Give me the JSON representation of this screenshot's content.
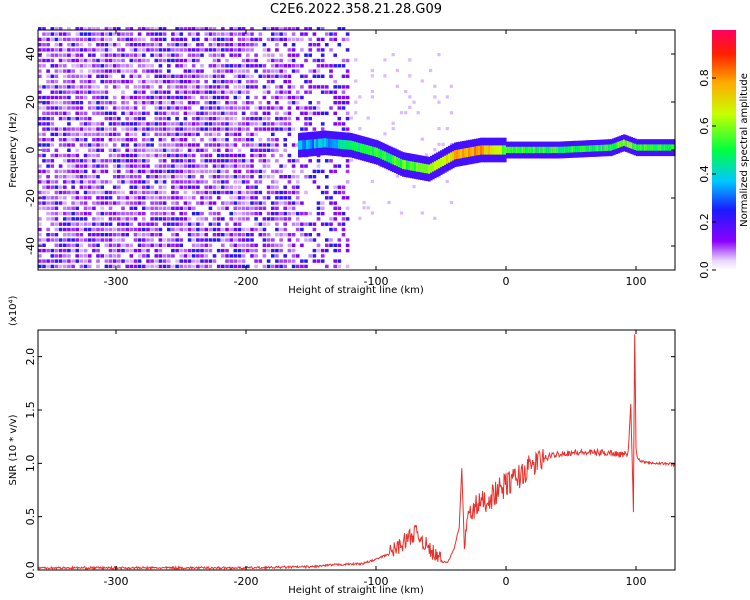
{
  "title": "C2E6.2022.358.21.28.G09",
  "colors": {
    "snr_line": "#e8302a",
    "spectrogram_background": "#ffffff"
  },
  "chart_data": [
    {
      "type": "heatmap",
      "title": "C2E6.2022.358.21.28.G09",
      "xlabel": "Height of straight line (km)",
      "ylabel": "Frequency (Hz)",
      "xlim": [
        -360,
        130
      ],
      "ylim": [
        -50,
        50
      ],
      "x_ticks": [
        "-300",
        "-200",
        "-100",
        "0",
        "100"
      ],
      "y_ticks": [
        "-40",
        "-20",
        "0",
        "20",
        "40"
      ],
      "colorbar": {
        "label": "Normalized spectral amplitude",
        "range": [
          0.0,
          1.0
        ],
        "ticks": [
          "0.0",
          "0.2",
          "0.4",
          "0.6",
          "0.8"
        ],
        "colormap": "rainbow"
      },
      "signal_track": [
        {
          "x": -160,
          "freq": 2,
          "amp": 0.35
        },
        {
          "x": -140,
          "freq": 3,
          "amp": 0.35
        },
        {
          "x": -120,
          "freq": 2,
          "amp": 0.45
        },
        {
          "x": -100,
          "freq": -1,
          "amp": 0.5
        },
        {
          "x": -80,
          "freq": -6,
          "amp": 0.55
        },
        {
          "x": -60,
          "freq": -8,
          "amp": 0.6
        },
        {
          "x": -40,
          "freq": -2,
          "amp": 0.75
        },
        {
          "x": -20,
          "freq": 0,
          "amp": 0.8
        },
        {
          "x": 0,
          "freq": 0,
          "amp": 0.55
        },
        {
          "x": 40,
          "freq": 0,
          "amp": 0.5
        },
        {
          "x": 80,
          "freq": 1,
          "amp": 0.5
        },
        {
          "x": 90,
          "freq": 3,
          "amp": 0.6
        },
        {
          "x": 100,
          "freq": 1,
          "amp": 0.55
        },
        {
          "x": 130,
          "freq": 1,
          "amp": 0.5
        }
      ]
    },
    {
      "type": "line",
      "xlabel": "Height of straight line (km)",
      "ylabel": "SNR (10 * v/v)",
      "y_multiplier": "(x10⁴)",
      "xlim": [
        -360,
        130
      ],
      "ylim": [
        0,
        2.25
      ],
      "x_ticks": [
        "-300",
        "-200",
        "-100",
        "0",
        "100"
      ],
      "y_ticks": [
        "0.0",
        "0.5",
        "1.0",
        "1.5",
        "2.0"
      ],
      "series": [
        {
          "x": [
            -360,
            -300,
            -200,
            -150,
            -130,
            -110,
            -100,
            -90,
            -80,
            -75,
            -70,
            -65,
            -60,
            -55,
            -50,
            -45,
            -40,
            -36,
            -34,
            -32,
            -30,
            -25,
            -20,
            -15,
            -10,
            -5,
            0,
            10,
            20,
            30,
            40,
            50,
            60,
            70,
            80,
            90,
            94,
            96,
            98,
            99,
            100,
            101,
            103,
            105,
            110,
            120,
            130
          ],
          "y": [
            0.02,
            0.02,
            0.02,
            0.03,
            0.05,
            0.06,
            0.1,
            0.15,
            0.25,
            0.3,
            0.35,
            0.3,
            0.2,
            0.15,
            0.08,
            0.07,
            0.2,
            0.4,
            0.95,
            0.2,
            0.45,
            0.58,
            0.62,
            0.66,
            0.7,
            0.75,
            0.8,
            0.88,
            0.98,
            1.05,
            1.09,
            1.1,
            1.1,
            1.1,
            1.1,
            1.08,
            1.1,
            1.55,
            0.55,
            2.22,
            1.15,
            1.05,
            1.03,
            1.02,
            1.01,
            1.0,
            0.99
          ]
        }
      ]
    }
  ]
}
